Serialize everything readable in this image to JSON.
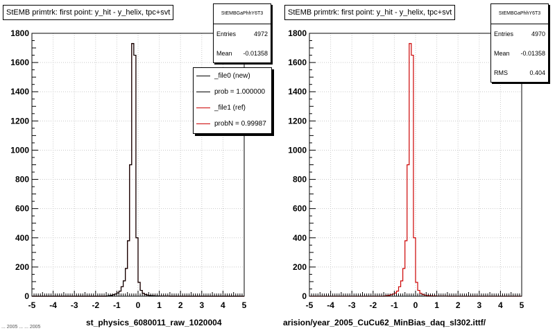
{
  "colors": {
    "new_line": "#000000",
    "ref_line": "#cc0000",
    "axis": "#000000",
    "grid": "#c8c8c8"
  },
  "panels": [
    {
      "title": "StEMB primtrk: first point: y_hit - y_helix, tpc+svt",
      "stats": {
        "name": "StEMBGaPhhY6T3",
        "rows": [
          {
            "label": "Entries",
            "value": "4972"
          },
          {
            "label": "Mean",
            "value": "-0.01358"
          }
        ]
      },
      "legend": [
        {
          "label": "_file0 (new)",
          "color": "#000000"
        },
        {
          "label": "prob = 1.000000",
          "color": "#000000"
        },
        {
          "label": "_file1 (ref)",
          "color": "#cc0000"
        },
        {
          "label": "probN = 0.99987",
          "color": "#cc0000"
        }
      ],
      "caption": "st_physics_6080011_raw_1020004"
    },
    {
      "title": "StEMB primtrk: first point: y_hit - y_helix, tpc+svt",
      "stats": {
        "name": "StEMBGaPhhY6T3",
        "rows": [
          {
            "label": "Entries",
            "value": "4970"
          },
          {
            "label": "Mean",
            "value": "-0.01358"
          },
          {
            "label": "RMS",
            "value": "0.404"
          }
        ]
      },
      "legend": [],
      "caption": "arision/year_2005_CuCu62_MinBias_daq_sl302.ittf/"
    }
  ],
  "footer": "... 2005 ... ... 2005",
  "chart_data": [
    {
      "type": "histogram",
      "title": "StEMB primtrk: first point: y_hit - y_helix, tpc+svt",
      "xlabel": "st_physics_6080011_raw_1020004",
      "ylabel": "",
      "xlim": [
        -5,
        5
      ],
      "ylim": [
        0,
        1800
      ],
      "x_ticks": [
        "-5",
        "-4",
        "-3",
        "-2",
        "-1",
        "0",
        "1",
        "2",
        "3",
        "4",
        "5"
      ],
      "y_ticks": [
        "0",
        "200",
        "400",
        "600",
        "800",
        "1000",
        "1200",
        "1400",
        "1600",
        "1800"
      ],
      "grid": true,
      "bin_edges": [
        -1.5,
        -1.4,
        -1.3,
        -1.2,
        -1.1,
        -1.0,
        -0.9,
        -0.8,
        -0.7,
        -0.6,
        -0.5,
        -0.4,
        -0.3,
        -0.2,
        -0.1,
        0.0,
        0.1,
        0.2,
        0.3,
        0.4,
        0.5,
        0.6,
        0.7,
        0.8,
        0.9,
        1.0,
        1.1,
        1.2,
        1.3,
        1.4,
        1.5
      ],
      "series": [
        {
          "name": "_file0 (new)",
          "values": [
            2,
            4,
            6,
            10,
            15,
            22,
            35,
            65,
            105,
            190,
            380,
            900,
            1730,
            1650,
            400,
            95,
            40,
            20,
            12,
            8,
            5,
            4,
            3,
            2,
            2,
            1,
            1,
            1,
            1,
            1
          ]
        },
        {
          "name": "_file1 (ref)",
          "values": [
            2,
            4,
            6,
            10,
            15,
            22,
            35,
            65,
            105,
            190,
            380,
            900,
            1730,
            1650,
            400,
            95,
            40,
            20,
            12,
            8,
            5,
            4,
            3,
            2,
            2,
            1,
            1,
            1,
            1,
            1
          ]
        }
      ]
    },
    {
      "type": "histogram",
      "title": "StEMB primtrk: first point: y_hit - y_helix, tpc+svt",
      "xlabel": "arision/year_2005_CuCu62_MinBias_daq_sl302.ittf/",
      "ylabel": "",
      "xlim": [
        -5,
        5
      ],
      "ylim": [
        0,
        1800
      ],
      "x_ticks": [
        "-5",
        "-4",
        "-3",
        "-2",
        "-1",
        "0",
        "1",
        "2",
        "3",
        "4",
        "5"
      ],
      "y_ticks": [
        "0",
        "200",
        "400",
        "600",
        "800",
        "1000",
        "1200",
        "1400",
        "1600",
        "1800"
      ],
      "grid": true,
      "bin_edges": [
        -1.5,
        -1.4,
        -1.3,
        -1.2,
        -1.1,
        -1.0,
        -0.9,
        -0.8,
        -0.7,
        -0.6,
        -0.5,
        -0.4,
        -0.3,
        -0.2,
        -0.1,
        0.0,
        0.1,
        0.2,
        0.3,
        0.4,
        0.5,
        0.6,
        0.7,
        0.8,
        0.9,
        1.0,
        1.1,
        1.2,
        1.3,
        1.4,
        1.5
      ],
      "series": [
        {
          "name": "_file1 (ref)",
          "values": [
            2,
            4,
            6,
            10,
            15,
            22,
            35,
            65,
            105,
            190,
            380,
            900,
            1730,
            1650,
            400,
            95,
            40,
            20,
            12,
            8,
            5,
            4,
            3,
            2,
            2,
            1,
            1,
            1,
            1,
            1
          ]
        }
      ]
    }
  ]
}
